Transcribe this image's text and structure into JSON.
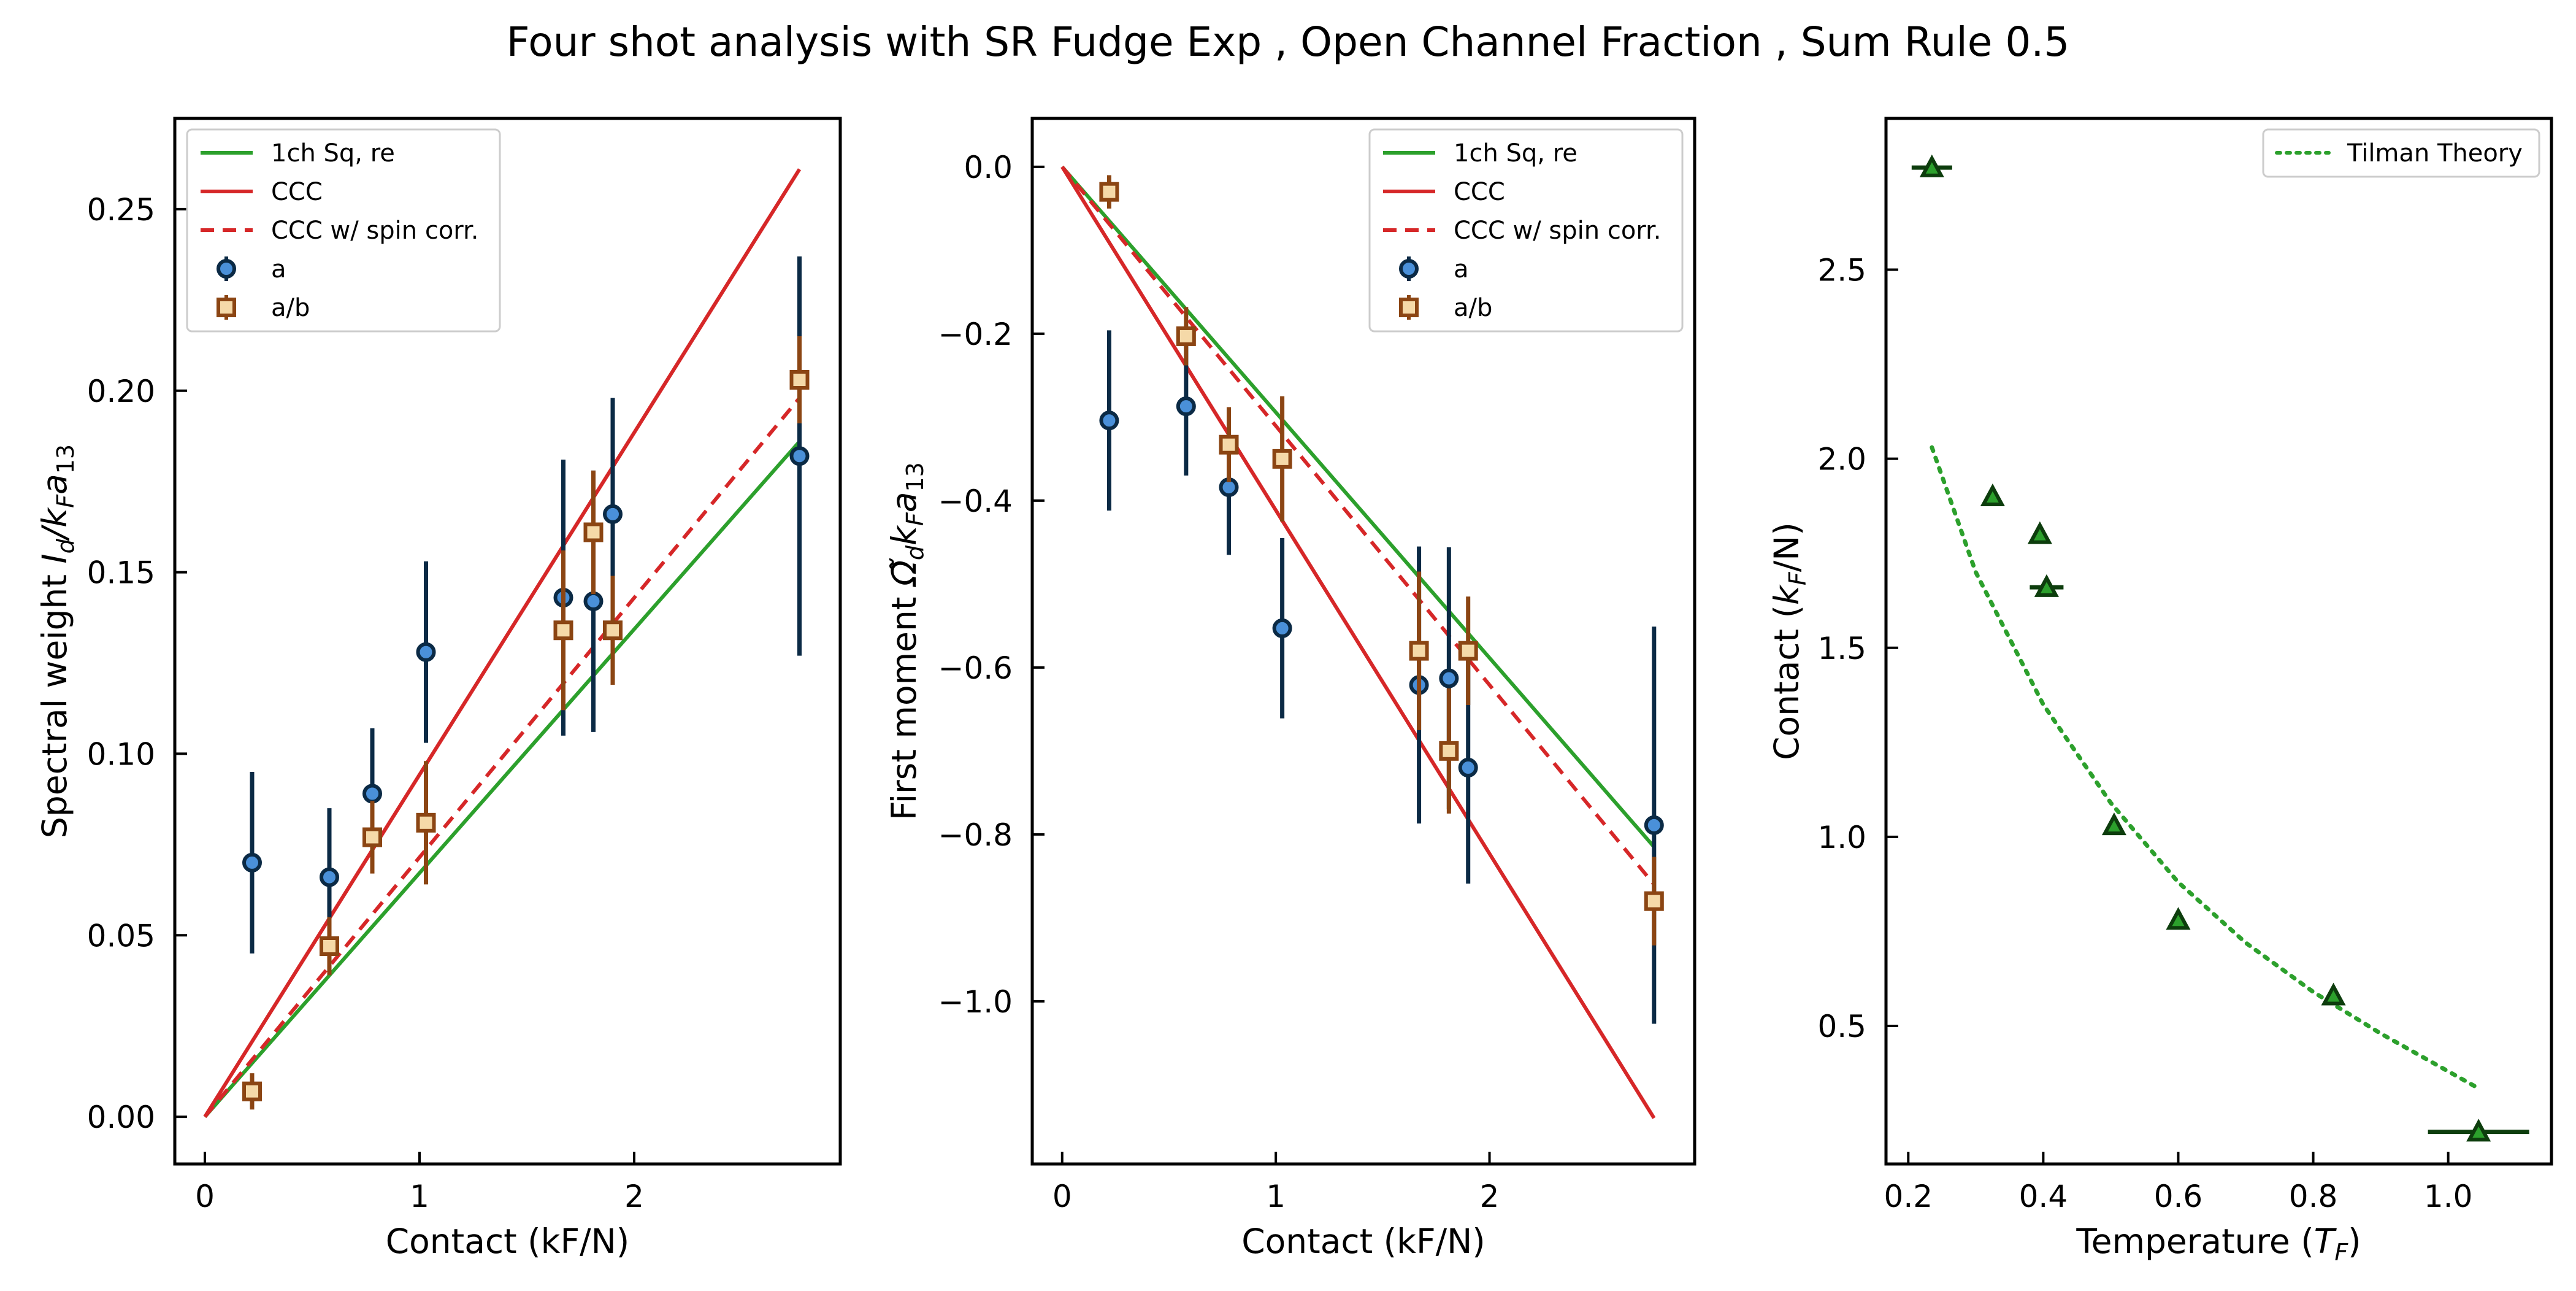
{
  "figure": {
    "title": "Four shot analysis with SR Fudge Exp , Open Channel Fraction , Sum Rule 0.5"
  },
  "colors": {
    "green": "#2ca02c",
    "red": "#d62728",
    "blue_face": "#4a90d9",
    "blue_edge": "#0b2a45",
    "orange_face": "#f5d9a8",
    "orange_edge": "#8b4513",
    "dark_green": "#0d3d0d",
    "triangle_face": "#2ca02c"
  },
  "chart_data": [
    {
      "type": "scatter",
      "xlabel": "Contact (kF/N)",
      "ylabel_main": "Spectral weight ",
      "ylabel_math": "I",
      "ylabel_sub1": "d",
      "ylabel_slash": "/k",
      "ylabel_sub2": "F",
      "ylabel_a": "a",
      "ylabel_sub3": "13",
      "xlim": [
        -0.14,
        2.96
      ],
      "ylim": [
        -0.013,
        0.275
      ],
      "xticks": [
        0,
        1,
        2
      ],
      "yticks": [
        0.0,
        0.05,
        0.1,
        0.15,
        0.2,
        0.25
      ],
      "ytick_labels": [
        "0.00",
        "0.05",
        "0.10",
        "0.15",
        "0.20",
        "0.25"
      ],
      "legend_position": "upper-left",
      "lines": [
        {
          "name": "1ch Sq, re",
          "style": "solid",
          "color": "#2ca02c",
          "x": [
            0,
            2.77
          ],
          "y": [
            0,
            0.186
          ]
        },
        {
          "name": "CCC",
          "style": "solid",
          "color": "#d62728",
          "x": [
            0,
            2.77
          ],
          "y": [
            0,
            0.261
          ]
        },
        {
          "name": "CCC w/ spin corr.",
          "style": "dashed",
          "color": "#d62728",
          "x": [
            0,
            2.77
          ],
          "y": [
            0,
            0.198
          ]
        }
      ],
      "series": [
        {
          "name": "a",
          "marker": "circle",
          "points": [
            {
              "x": 0.22,
              "y": 0.07,
              "yerr": 0.025
            },
            {
              "x": 0.58,
              "y": 0.066,
              "yerr": 0.019
            },
            {
              "x": 0.78,
              "y": 0.089,
              "yerr": 0.018
            },
            {
              "x": 1.03,
              "y": 0.128,
              "yerr": 0.025
            },
            {
              "x": 1.67,
              "y": 0.143,
              "yerr": 0.038
            },
            {
              "x": 1.81,
              "y": 0.142,
              "yerr": 0.036
            },
            {
              "x": 1.9,
              "y": 0.166,
              "yerr": 0.032
            },
            {
              "x": 2.77,
              "y": 0.182,
              "yerr": 0.055
            }
          ]
        },
        {
          "name": "a/b",
          "marker": "square",
          "points": [
            {
              "x": 0.22,
              "y": 0.007,
              "yerr": 0.005
            },
            {
              "x": 0.58,
              "y": 0.047,
              "yerr": 0.008
            },
            {
              "x": 0.78,
              "y": 0.077,
              "yerr": 0.01
            },
            {
              "x": 1.03,
              "y": 0.081,
              "yerr": 0.017
            },
            {
              "x": 1.67,
              "y": 0.134,
              "yerr": 0.022
            },
            {
              "x": 1.81,
              "y": 0.161,
              "yerr": 0.017
            },
            {
              "x": 1.9,
              "y": 0.134,
              "yerr": 0.015
            },
            {
              "x": 2.77,
              "y": 0.203,
              "yerr": 0.012
            }
          ]
        }
      ]
    },
    {
      "type": "scatter",
      "xlabel": "Contact (kF/N)",
      "ylabel_main": "First moment ",
      "ylabel_math": "Ω̃",
      "ylabel_sub1": "d",
      "ylabel_slash": "k",
      "ylabel_sub2": "F",
      "ylabel_a": "a",
      "ylabel_sub3": "13",
      "xlim": [
        -0.14,
        2.96
      ],
      "ylim": [
        -1.195,
        0.058
      ],
      "xticks": [
        0,
        1,
        2
      ],
      "yticks": [
        0.0,
        -0.2,
        -0.4,
        -0.6,
        -0.8,
        -1.0
      ],
      "ytick_labels": [
        "0.0",
        "−0.2",
        "−0.4",
        "−0.6",
        "−0.8",
        "−1.0"
      ],
      "legend_position": "upper-right",
      "lines": [
        {
          "name": "1ch Sq, re",
          "style": "solid",
          "color": "#2ca02c",
          "x": [
            0,
            2.77
          ],
          "y": [
            0,
            -0.815
          ]
        },
        {
          "name": "CCC",
          "style": "solid",
          "color": "#d62728",
          "x": [
            0,
            2.77
          ],
          "y": [
            0,
            -1.14
          ]
        },
        {
          "name": "CCC w/ spin corr.",
          "style": "dashed",
          "color": "#d62728",
          "x": [
            0,
            2.77
          ],
          "y": [
            0,
            -0.86
          ]
        }
      ],
      "series": [
        {
          "name": "a",
          "marker": "circle",
          "points": [
            {
              "x": 0.22,
              "y": -0.304,
              "yerr": 0.108
            },
            {
              "x": 0.58,
              "y": -0.287,
              "yerr": 0.083
            },
            {
              "x": 0.78,
              "y": -0.384,
              "yerr": 0.081
            },
            {
              "x": 1.03,
              "y": -0.553,
              "yerr": 0.108
            },
            {
              "x": 1.67,
              "y": -0.621,
              "yerr": 0.166
            },
            {
              "x": 1.81,
              "y": -0.613,
              "yerr": 0.157
            },
            {
              "x": 1.9,
              "y": -0.72,
              "yerr": 0.139
            },
            {
              "x": 2.77,
              "y": -0.789,
              "yerr": 0.238
            }
          ]
        },
        {
          "name": "a/b",
          "marker": "square",
          "points": [
            {
              "x": 0.22,
              "y": -0.03,
              "yerr": 0.02
            },
            {
              "x": 0.58,
              "y": -0.203,
              "yerr": 0.035
            },
            {
              "x": 0.78,
              "y": -0.333,
              "yerr": 0.045
            },
            {
              "x": 1.03,
              "y": -0.35,
              "yerr": 0.075
            },
            {
              "x": 1.67,
              "y": -0.58,
              "yerr": 0.095
            },
            {
              "x": 1.81,
              "y": -0.7,
              "yerr": 0.075
            },
            {
              "x": 1.9,
              "y": -0.58,
              "yerr": 0.065
            },
            {
              "x": 2.77,
              "y": -0.88,
              "yerr": 0.053
            }
          ]
        }
      ]
    },
    {
      "type": "scatter",
      "xlabel_main": "Temperature (",
      "xlabel_math": "T",
      "xlabel_sub": "F",
      "xlabel_end": ")",
      "ylabel_main": "Contact (",
      "ylabel_math": "k",
      "ylabel_sub": "F",
      "ylabel_end": "/N)",
      "xlim": [
        0.167,
        1.153
      ],
      "ylim": [
        0.135,
        2.9
      ],
      "xticks": [
        0.2,
        0.4,
        0.6,
        0.8,
        1.0
      ],
      "xtick_labels": [
        "0.2",
        "0.4",
        "0.6",
        "0.8",
        "1.0"
      ],
      "yticks": [
        0.5,
        1.0,
        1.5,
        2.0,
        2.5
      ],
      "ytick_labels": [
        "0.5",
        "1.0",
        "1.5",
        "2.0",
        "2.5"
      ],
      "legend_position": "upper-right",
      "theory": {
        "name": "Tilman Theory",
        "style": "dotted",
        "color": "#2ca02c",
        "x": [
          0.235,
          0.3,
          0.4,
          0.5,
          0.6,
          0.7,
          0.8,
          0.9,
          1.04
        ],
        "y": [
          2.03,
          1.7,
          1.35,
          1.09,
          0.88,
          0.72,
          0.59,
          0.48,
          0.34
        ]
      },
      "points": [
        {
          "x": 0.235,
          "y": 2.77,
          "xerr": 0.03
        },
        {
          "x": 0.325,
          "y": 1.9,
          "xerr": 0
        },
        {
          "x": 0.395,
          "y": 1.8,
          "xerr": 0
        },
        {
          "x": 0.405,
          "y": 1.66,
          "xerr": 0.025
        },
        {
          "x": 0.505,
          "y": 1.03,
          "xerr": 0
        },
        {
          "x": 0.6,
          "y": 0.78,
          "xerr": 0.008
        },
        {
          "x": 0.83,
          "y": 0.58,
          "xerr": 0
        },
        {
          "x": 1.045,
          "y": 0.22,
          "xerr": 0.075
        }
      ]
    }
  ]
}
